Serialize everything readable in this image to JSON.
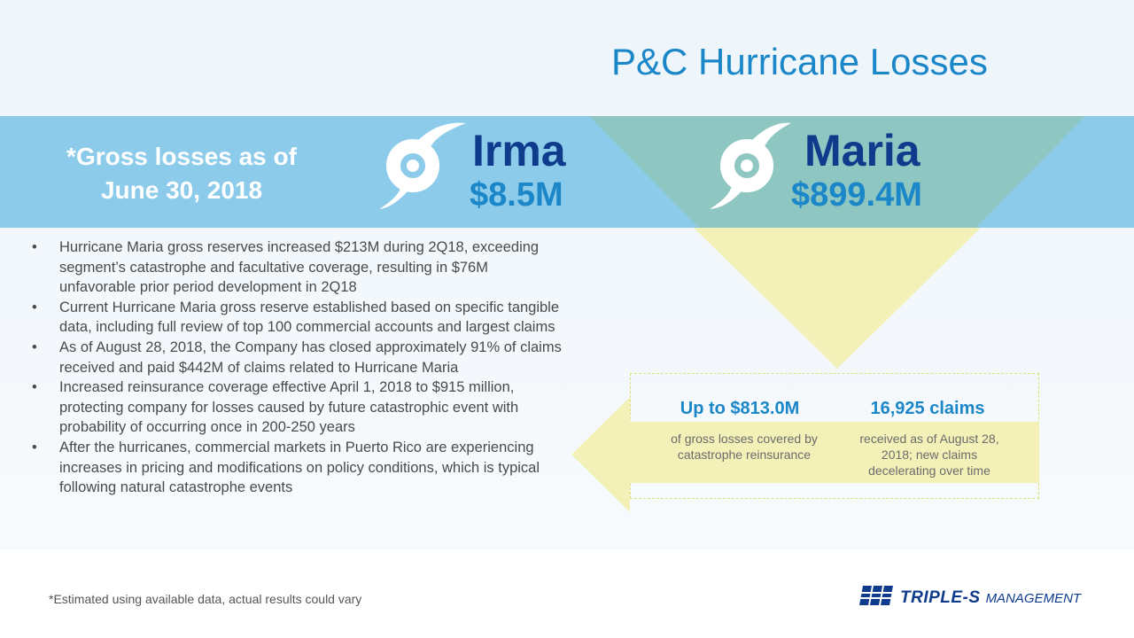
{
  "title": "P&C Hurricane Losses",
  "gross_note": {
    "line1": "*Gross losses as of",
    "line2": "June 30, 2018"
  },
  "storms": [
    {
      "name": "Irma",
      "amount": "$8.5M",
      "icon": "hurricane-icon"
    },
    {
      "name": "Maria",
      "amount": "$899.4M",
      "icon": "hurricane-icon"
    }
  ],
  "bullet_glyph": "•",
  "bullets": [
    "Hurricane Maria gross reserves increased $213M during 2Q18, exceeding segment’s catastrophe and facultative coverage, resulting in $76M unfavorable prior period development in 2Q18",
    "Current Hurricane Maria gross reserve established based on specific tangible data, including full review of top 100 commercial accounts and largest claims",
    "As of August 28, 2018, the Company has closed approximately 91% of claims received and paid $442M of claims related to Hurricane Maria",
    "Increased reinsurance coverage effective April 1, 2018 to $915 million, protecting company for losses caused by future catastrophic event with probability of occurring once in 200-250 years",
    "After the hurricanes, commercial markets in Puerto Rico are experiencing increases in pricing and modifications on policy conditions, which is typical following natural catastrophe events"
  ],
  "stats": [
    {
      "headline": "Up to $813.0M",
      "text": "of gross losses covered by catastrophe reinsurance"
    },
    {
      "headline": "16,925 claims",
      "text": "received as of August 28, 2018; new claims decelerating over time"
    }
  ],
  "footnote": "*Estimated using available data, actual results could vary",
  "logo": {
    "brand": "TRIPLE-S",
    "suffix": "MANAGEMENT",
    "icon": "sss-logo-icon"
  },
  "colors": {
    "accent_blue": "#1b87c8",
    "navy": "#0e3b8c",
    "band_blue": "#8ccbea",
    "teal": "#8ec6c2",
    "pale_yellow": "#f3f1b8"
  }
}
